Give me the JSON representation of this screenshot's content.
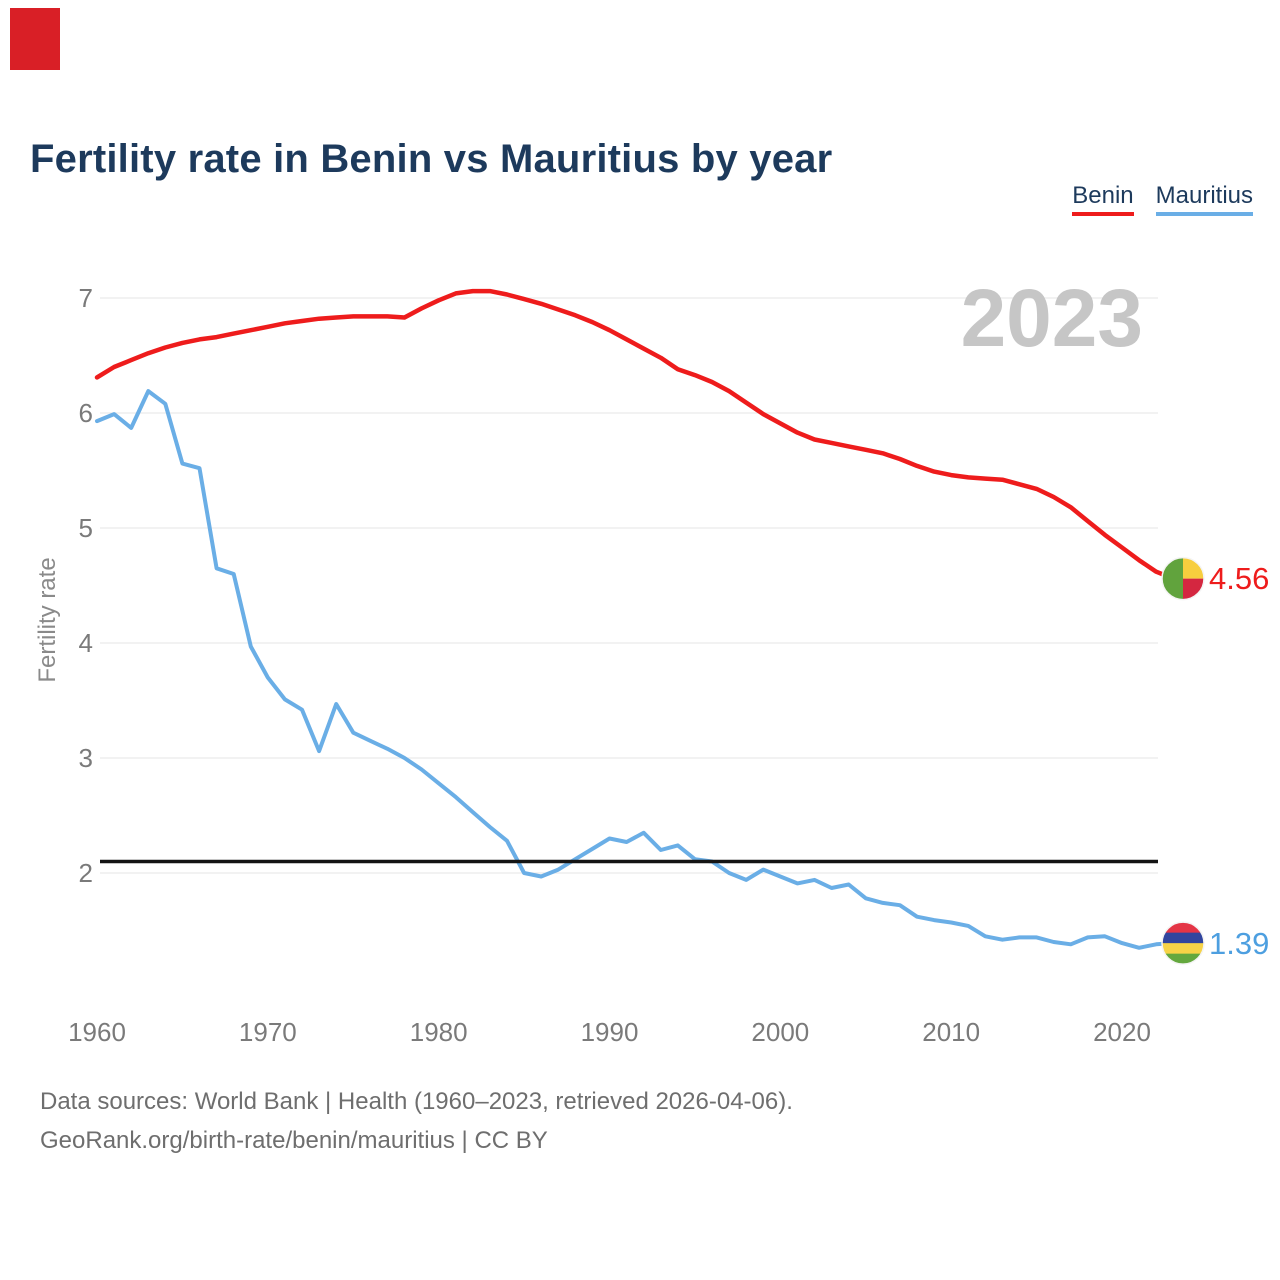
{
  "header": {
    "title": "Fertility rate in Benin vs Mauritius by year"
  },
  "legend": {
    "items": [
      {
        "label": "Benin",
        "color": "#ee1c1c"
      },
      {
        "label": "Mauritius",
        "color": "#6aaee6"
      }
    ]
  },
  "watermark": "2023",
  "y_axis": {
    "title": "Fertility rate"
  },
  "footer": {
    "line1": "Data sources: World Bank | Health (1960–2023, retrieved 2026-04-06).",
    "line2": "GeoRank.org/birth-rate/benin/mauritius | CC BY"
  },
  "colors": {
    "title_text": "#1d3a5c",
    "axis_text": "#7a7a7a",
    "grid_line": "#ebebeb",
    "watermark_text": "#c6c6c6",
    "reference_line": "#141414",
    "corner_marker": "#d91f26"
  },
  "chart_data": {
    "type": "line",
    "title": "Fertility rate in Benin vs Mauritius by year",
    "xlabel": "",
    "ylabel": "Fertility rate",
    "grid": "horizontal",
    "legend_position": "top-right",
    "ylim": [
      1.25,
      7.15
    ],
    "y_ticks": [
      7,
      6,
      5,
      4,
      3,
      2
    ],
    "x_ticks": [
      1960,
      1970,
      1980,
      1990,
      2000,
      2010,
      2020
    ],
    "reference_line": {
      "value": 2.1,
      "color": "#141414"
    },
    "x": [
      1960,
      1961,
      1962,
      1963,
      1964,
      1965,
      1966,
      1967,
      1968,
      1969,
      1970,
      1971,
      1972,
      1973,
      1974,
      1975,
      1976,
      1977,
      1978,
      1979,
      1980,
      1981,
      1982,
      1983,
      1984,
      1985,
      1986,
      1987,
      1988,
      1989,
      1990,
      1991,
      1992,
      1993,
      1994,
      1995,
      1996,
      1997,
      1998,
      1999,
      2000,
      2001,
      2002,
      2003,
      2004,
      2005,
      2006,
      2007,
      2008,
      2009,
      2010,
      2011,
      2012,
      2013,
      2014,
      2015,
      2016,
      2017,
      2018,
      2019,
      2020,
      2021,
      2022,
      2023
    ],
    "series": [
      {
        "name": "Benin",
        "color": "#ee1c1c",
        "stroke_width": 4.5,
        "values": [
          6.31,
          6.4,
          6.46,
          6.52,
          6.57,
          6.61,
          6.64,
          6.66,
          6.69,
          6.72,
          6.75,
          6.78,
          6.8,
          6.82,
          6.83,
          6.84,
          6.84,
          6.84,
          6.83,
          6.91,
          6.98,
          7.04,
          7.06,
          7.06,
          7.03,
          6.99,
          6.95,
          6.9,
          6.85,
          6.79,
          6.72,
          6.64,
          6.56,
          6.48,
          6.38,
          6.33,
          6.27,
          6.19,
          6.09,
          5.99,
          5.91,
          5.83,
          5.77,
          5.74,
          5.71,
          5.68,
          5.65,
          5.6,
          5.54,
          5.49,
          5.46,
          5.44,
          5.43,
          5.42,
          5.38,
          5.34,
          5.27,
          5.18,
          5.06,
          4.94,
          4.83,
          4.72,
          4.62,
          4.56
        ]
      },
      {
        "name": "Mauritius",
        "color": "#6aaee6",
        "stroke_width": 4,
        "values": [
          5.93,
          5.99,
          5.87,
          6.19,
          6.08,
          5.56,
          5.52,
          4.65,
          4.6,
          3.97,
          3.7,
          3.51,
          3.42,
          3.06,
          3.47,
          3.22,
          3.15,
          3.08,
          3.0,
          2.9,
          2.78,
          2.66,
          2.53,
          2.4,
          2.28,
          2.0,
          1.97,
          2.03,
          2.12,
          2.21,
          2.3,
          2.27,
          2.35,
          2.2,
          2.24,
          2.12,
          2.1,
          2.0,
          1.94,
          2.03,
          1.97,
          1.91,
          1.94,
          1.87,
          1.9,
          1.78,
          1.74,
          1.72,
          1.62,
          1.59,
          1.57,
          1.54,
          1.45,
          1.42,
          1.44,
          1.44,
          1.4,
          1.38,
          1.44,
          1.45,
          1.39,
          1.35,
          1.38,
          1.39
        ]
      }
    ],
    "end_labels": [
      {
        "series": "Benin",
        "text": "4.56",
        "flag": "benin-flag-icon"
      },
      {
        "series": "Mauritius",
        "text": "1.39",
        "flag": "mauritius-flag-icon"
      }
    ],
    "flag_colors": {
      "benin": {
        "green": "#61a33d",
        "yellow": "#f7ce3e",
        "red": "#d42740"
      },
      "mauritius": {
        "red": "#e43546",
        "blue": "#31459e",
        "yellow": "#f7d347",
        "green": "#64a83e"
      }
    }
  }
}
